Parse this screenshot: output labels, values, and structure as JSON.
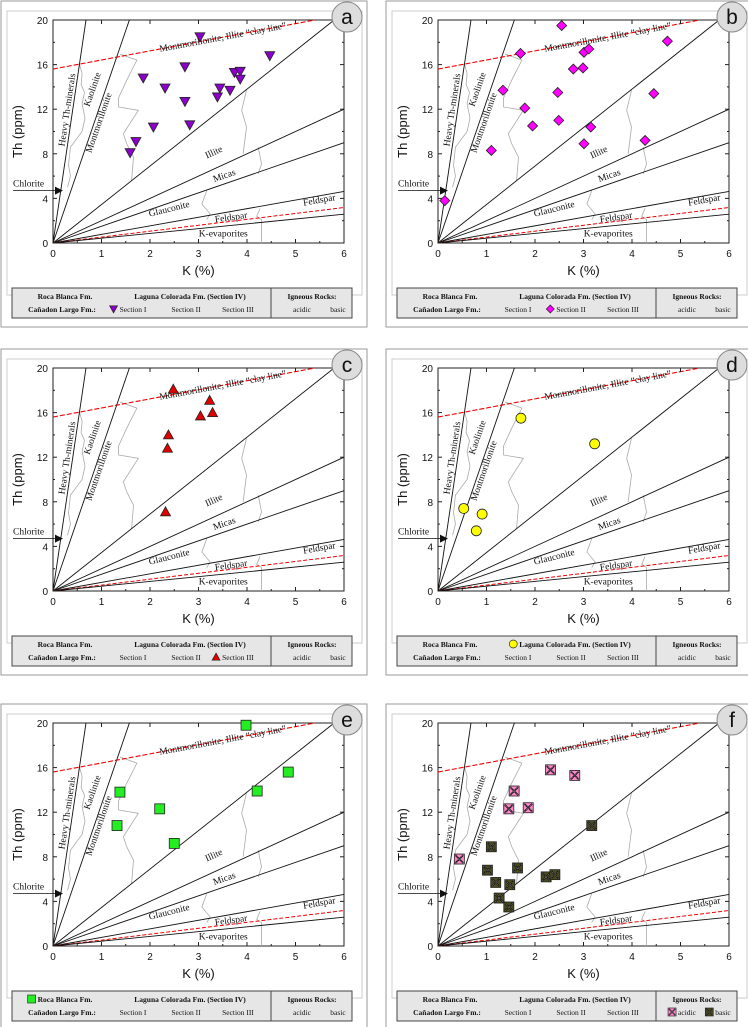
{
  "chart_data": {
    "type": "scatter",
    "xlabel": "K (%)",
    "ylabel": "Th (ppm)",
    "xlim": [
      0,
      6
    ],
    "ylim": [
      0,
      20
    ],
    "xticks": [
      0,
      1,
      2,
      3,
      4,
      5,
      6
    ],
    "yticks": [
      0,
      4,
      8,
      12,
      16,
      20
    ],
    "zone_labels": {
      "clay_line": "Montmorillonite, Illite “clay line”",
      "heavy": "Heavy Th-minerals",
      "kaolinite": "Kaolinite",
      "montmorillonite": "Montmorillonite",
      "illite": "Illite",
      "micas": "Micas",
      "glauconite": "Glauconite",
      "feldspar_upper": "Feldspar",
      "feldspar_lower": "Feldspar",
      "k_evaporites": "K-evaporites",
      "chlorite": "Chlorite"
    },
    "chlorite_marker_th": 4.7,
    "reference_lines_th_per_k": {
      "heavy_th_minerals": 29.4,
      "kaolinite": 12.7,
      "montmorillonite_illite": 3.45,
      "illite": 2.0,
      "micas": 1.5,
      "feldspar": 0.77,
      "feldspar_dashed": 0.53,
      "k_evaporites": 0.43
    },
    "clay_line": [
      [
        0,
        15.6
      ],
      [
        5.4,
        20
      ]
    ],
    "legend": {
      "roca": "Roca Blanca Fm.",
      "laguna": "Laguna Colorada Fm. (Section IV)",
      "igneous": "Igneous Rocks:",
      "canadon": "Cañadon Largo Fm.:",
      "s1": "Section I",
      "s2": "Section II",
      "s3": "Section III",
      "acidic": "acidic",
      "basic": "basic"
    },
    "panels": [
      {
        "letter": "a",
        "series": [
          {
            "name": "Cañadon Largo Fm. Section I",
            "legend_key": "s1",
            "marker": "tri-down",
            "color": "#8a00c8",
            "points": [
              [
                3.03,
                18.5
              ],
              [
                4.47,
                16.8
              ],
              [
                2.72,
                15.8
              ],
              [
                3.74,
                15.3
              ],
              [
                3.86,
                15.4
              ],
              [
                3.86,
                14.7
              ],
              [
                1.86,
                14.8
              ],
              [
                2.31,
                13.9
              ],
              [
                3.44,
                13.9
              ],
              [
                3.65,
                13.7
              ],
              [
                3.39,
                13.1
              ],
              [
                2.72,
                12.7
              ],
              [
                2.82,
                10.6
              ],
              [
                2.07,
                10.4
              ],
              [
                1.71,
                9.1
              ],
              [
                1.59,
                8.1
              ]
            ]
          }
        ]
      },
      {
        "letter": "b",
        "series": [
          {
            "name": "Cañadon Largo Fm. Section II",
            "legend_key": "s2",
            "marker": "diamond",
            "color": "#ff00ff",
            "points": [
              [
                2.55,
                19.5
              ],
              [
                1.7,
                17.0
              ],
              [
                3.01,
                17.1
              ],
              [
                3.11,
                17.4
              ],
              [
                4.73,
                18.1
              ],
              [
                2.79,
                15.6
              ],
              [
                2.99,
                15.7
              ],
              [
                1.34,
                13.7
              ],
              [
                2.47,
                13.5
              ],
              [
                4.45,
                13.4
              ],
              [
                1.79,
                12.1
              ],
              [
                1.95,
                10.5
              ],
              [
                2.49,
                11.0
              ],
              [
                3.15,
                10.4
              ],
              [
                3.01,
                8.9
              ],
              [
                4.27,
                9.2
              ],
              [
                1.1,
                8.3
              ],
              [
                0.14,
                3.8
              ]
            ]
          }
        ]
      },
      {
        "letter": "c",
        "series": [
          {
            "name": "Cañadon Largo Fm. Section III",
            "legend_key": "s3",
            "marker": "tri-up",
            "color": "#e00000",
            "points": [
              [
                2.48,
                18.1
              ],
              [
                3.23,
                17.1
              ],
              [
                3.29,
                16.0
              ],
              [
                3.04,
                15.7
              ],
              [
                2.38,
                14.0
              ],
              [
                2.36,
                12.8
              ],
              [
                2.32,
                7.1
              ]
            ]
          }
        ]
      },
      {
        "letter": "d",
        "series": [
          {
            "name": "Laguna Colorada Fm. (Section IV)",
            "legend_key": "laguna",
            "marker": "circle",
            "color": "#ffff00",
            "points": [
              [
                1.71,
                15.5
              ],
              [
                3.23,
                13.2
              ],
              [
                0.53,
                7.4
              ],
              [
                0.91,
                6.9
              ],
              [
                0.79,
                5.4
              ]
            ]
          }
        ]
      },
      {
        "letter": "e",
        "series": [
          {
            "name": "Roca Blanca Fm.",
            "legend_key": "roca",
            "marker": "square",
            "color": "#22ee22",
            "points": [
              [
                3.98,
                19.8
              ],
              [
                4.85,
                15.6
              ],
              [
                1.38,
                13.8
              ],
              [
                4.21,
                13.9
              ],
              [
                2.2,
                12.3
              ],
              [
                1.32,
                10.8
              ],
              [
                2.5,
                9.2
              ]
            ]
          }
        ]
      },
      {
        "letter": "f",
        "series": [
          {
            "name": "Igneous Rocks acidic",
            "legend_key": "acidic",
            "marker": "xsquare",
            "color": "#ff88cc",
            "points": [
              [
                2.32,
                15.8
              ],
              [
                2.82,
                15.3
              ],
              [
                1.57,
                13.9
              ],
              [
                1.46,
                12.3
              ],
              [
                1.86,
                12.4
              ],
              [
                0.44,
                7.8
              ]
            ]
          },
          {
            "name": "Igneous Rocks basic",
            "legend_key": "basic",
            "marker": "xsquare",
            "color": "#4b4b1e",
            "points": [
              [
                3.17,
                10.8
              ],
              [
                1.1,
                8.9
              ],
              [
                1.02,
                6.8
              ],
              [
                1.64,
                7.0
              ],
              [
                1.19,
                5.7
              ],
              [
                1.48,
                5.5
              ],
              [
                2.23,
                6.2
              ],
              [
                2.41,
                6.4
              ],
              [
                1.26,
                4.3
              ],
              [
                1.46,
                3.5
              ]
            ]
          }
        ]
      }
    ]
  }
}
